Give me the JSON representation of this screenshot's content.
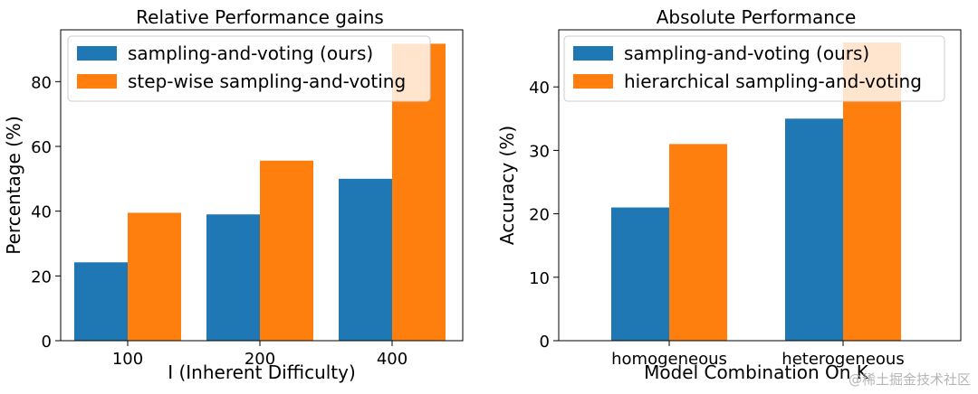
{
  "chart_data": [
    {
      "type": "bar",
      "title": "Relative Performance gains",
      "xlabel": "I (Inherent Difficulty)",
      "ylabel": "Percentage (%)",
      "categories": [
        "100",
        "200",
        "400"
      ],
      "yticks": [
        "0",
        "20",
        "40",
        "60",
        "80"
      ],
      "ylim": [
        0,
        96
      ],
      "legend_position": "top-left",
      "series": [
        {
          "name": "sampling-and-voting (ours)",
          "color": "#1f77b4",
          "values": [
            24.2,
            39,
            50
          ]
        },
        {
          "name": "step-wise sampling-and-voting",
          "color": "#ff7f0e",
          "values": [
            39.5,
            55.6,
            91.7
          ]
        }
      ]
    },
    {
      "type": "bar",
      "title": "Absolute Performance",
      "xlabel": "Model Combination On K",
      "ylabel": "Accuracy (%)",
      "categories": [
        "homogeneous",
        "heterogeneous"
      ],
      "yticks": [
        "0",
        "10",
        "20",
        "30",
        "40"
      ],
      "ylim": [
        0,
        49
      ],
      "legend_position": "top-left",
      "series": [
        {
          "name": "sampling-and-voting (ours)",
          "color": "#1f77b4",
          "values": [
            21,
            35
          ]
        },
        {
          "name": "hierarchical sampling-and-voting",
          "color": "#ff7f0e",
          "values": [
            31,
            47
          ]
        }
      ]
    }
  ],
  "watermark": "@稀土掘金技术社区"
}
